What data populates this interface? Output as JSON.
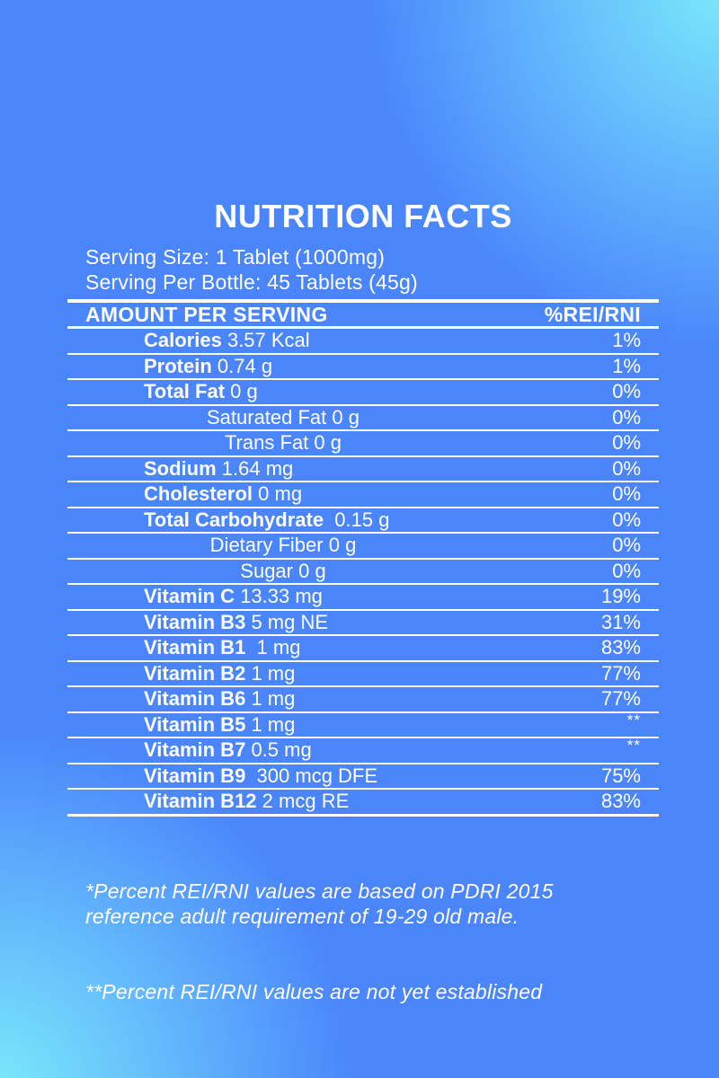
{
  "background": {
    "base_color": "#4a85fc",
    "glow_color": "#7be9fb",
    "text_color": "#ffffff"
  },
  "label": {
    "title": "NUTRITION FACTS",
    "serving_size": "Serving Size: 1 Tablet (1000mg)",
    "serving_per_bottle": "Serving Per Bottle: 45 Tablets (45g)",
    "table": {
      "header_left": "AMOUNT PER SERVING",
      "header_right": "%REI/RNI",
      "rows": [
        {
          "name": "Calories",
          "value": "3.57 Kcal",
          "percent": "1%",
          "indent": "main"
        },
        {
          "name": "Protein",
          "value": "0.74 g",
          "percent": "1%",
          "indent": "main"
        },
        {
          "name": "Total Fat",
          "value": "0 g",
          "percent": "0%",
          "indent": "main"
        },
        {
          "name": "Saturated Fat",
          "value": "0 g",
          "percent": "0%",
          "indent": "sub"
        },
        {
          "name": "Trans Fat",
          "value": "0 g",
          "percent": "0%",
          "indent": "sub"
        },
        {
          "name": "Sodium",
          "value": "1.64 mg",
          "percent": "0%",
          "indent": "main"
        },
        {
          "name": "Cholesterol",
          "value": "0 mg",
          "percent": "0%",
          "indent": "main"
        },
        {
          "name": "Total Carbohydrate",
          "value": " 0.15 g",
          "percent": "0%",
          "indent": "main"
        },
        {
          "name": "Dietary Fiber",
          "value": "0 g",
          "percent": "0%",
          "indent": "sub"
        },
        {
          "name": "Sugar",
          "value": "0 g",
          "percent": "0%",
          "indent": "sub"
        },
        {
          "name": "Vitamin C",
          "value": "13.33 mg",
          "percent": "19%",
          "indent": "main"
        },
        {
          "name": "Vitamin B3",
          "value": "5 mg NE",
          "percent": "31%",
          "indent": "main"
        },
        {
          "name": "Vitamin B1",
          "value": " 1 mg",
          "percent": "83%",
          "indent": "main"
        },
        {
          "name": "Vitamin B2",
          "value": "1 mg",
          "percent": "77%",
          "indent": "main"
        },
        {
          "name": "Vitamin B6",
          "value": "1 mg",
          "percent": "77%",
          "indent": "main"
        },
        {
          "name": "Vitamin B5",
          "value": "1 mg",
          "percent": "**",
          "indent": "main"
        },
        {
          "name": "Vitamin B7",
          "value": "0.5 mg",
          "percent": "**",
          "indent": "main"
        },
        {
          "name": "Vitamin B9",
          "value": " 300 mcg DFE",
          "percent": "75%",
          "indent": "main"
        },
        {
          "name": "Vitamin B12",
          "value": "2 mcg RE",
          "percent": "83%",
          "indent": "main"
        }
      ]
    },
    "footnotes": [
      "*Percent REI/RNI values are based on PDRI 2015  reference adult requirement of 19-29 old male.",
      "**Percent REI/RNI values are not yet established"
    ]
  }
}
